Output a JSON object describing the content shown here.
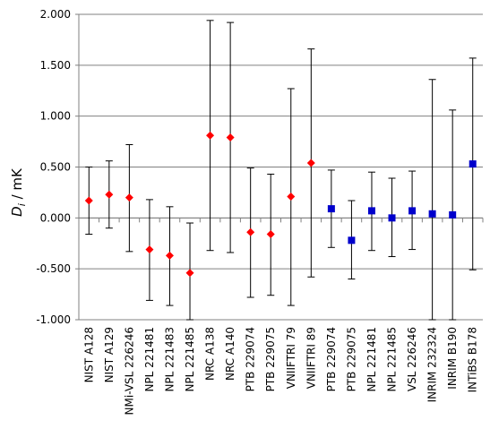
{
  "chart_data": {
    "type": "scatter",
    "title": "",
    "xlabel": "",
    "ylabel": "D",
    "ylabel_subscript": "i",
    "ylabel_unit": " / mK",
    "ylim": [
      -1.0,
      2.0
    ],
    "yticks": [
      -1.0,
      -0.5,
      0.0,
      0.5,
      1.0,
      1.5,
      2.0
    ],
    "ytick_labels": [
      "-1.000",
      "-0.500",
      "0.000",
      "0.500",
      "1.000",
      "1.500",
      "2.000"
    ],
    "grid": true,
    "legend": "none",
    "categories": [
      "NIST A128",
      "NIST A129",
      "NMi-VSL 226246",
      "NPL 221481",
      "NPL 221483",
      "NPL 221485",
      "NRC A138",
      "NRC A140",
      "PTB 229074",
      "PTB 229075",
      "VNIIFTRI 79",
      "VNIIFTRI 89",
      "PTB 229074",
      "PTB 229075",
      "NPL 221481",
      "NPL 221485",
      "VSL 226246",
      "INRIM 232324",
      "INRIM B190",
      "INTiBS B178"
    ],
    "series": [
      {
        "marker": "diamond",
        "color": "#ff0000",
        "points": [
          {
            "index": 0,
            "value": 0.17,
            "upper": 0.5,
            "lower": -0.16
          },
          {
            "index": 1,
            "value": 0.23,
            "upper": 0.56,
            "lower": -0.1
          },
          {
            "index": 2,
            "value": 0.2,
            "upper": 0.72,
            "lower": -0.33
          },
          {
            "index": 3,
            "value": -0.31,
            "upper": 0.18,
            "lower": -0.81
          },
          {
            "index": 4,
            "value": -0.37,
            "upper": 0.11,
            "lower": -0.86
          },
          {
            "index": 5,
            "value": -0.54,
            "upper": -0.05,
            "lower": -1.0
          },
          {
            "index": 6,
            "value": 0.81,
            "upper": 1.94,
            "lower": -0.32
          },
          {
            "index": 7,
            "value": 0.79,
            "upper": 1.92,
            "lower": -0.34
          },
          {
            "index": 8,
            "value": -0.14,
            "upper": 0.49,
            "lower": -0.78
          },
          {
            "index": 9,
            "value": -0.16,
            "upper": 0.43,
            "lower": -0.76
          },
          {
            "index": 10,
            "value": 0.21,
            "upper": 1.27,
            "lower": -0.86
          },
          {
            "index": 11,
            "value": 0.54,
            "upper": 1.66,
            "lower": -0.58
          }
        ]
      },
      {
        "marker": "square",
        "color": "#0000cc",
        "points": [
          {
            "index": 12,
            "value": 0.09,
            "upper": 0.47,
            "lower": -0.29
          },
          {
            "index": 13,
            "value": -0.22,
            "upper": 0.17,
            "lower": -0.6
          },
          {
            "index": 14,
            "value": 0.07,
            "upper": 0.45,
            "lower": -0.32
          },
          {
            "index": 15,
            "value": 0.0,
            "upper": 0.39,
            "lower": -0.38
          },
          {
            "index": 16,
            "value": 0.07,
            "upper": 0.46,
            "lower": -0.31
          },
          {
            "index": 17,
            "value": 0.04,
            "upper": 1.36,
            "lower": -1.0
          },
          {
            "index": 18,
            "value": 0.03,
            "upper": 1.06,
            "lower": -1.0
          },
          {
            "index": 19,
            "value": 0.53,
            "upper": 1.57,
            "lower": -0.51
          }
        ]
      }
    ]
  }
}
